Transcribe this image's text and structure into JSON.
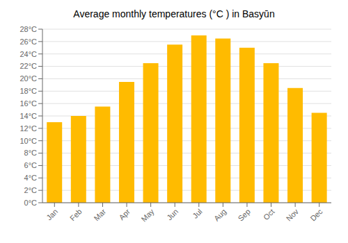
{
  "chart_data": {
    "type": "bar",
    "title": "Average monthly temperatures (°C ) in Basyūn",
    "categories": [
      "Jan",
      "Feb",
      "Mar",
      "Apr",
      "May",
      "Jun",
      "Jul",
      "Aug",
      "Sep",
      "Oct",
      "Nov",
      "Dec"
    ],
    "values": [
      13.0,
      14.0,
      15.5,
      19.5,
      22.5,
      25.5,
      27.0,
      26.5,
      25.0,
      22.5,
      18.5,
      14.5
    ],
    "color": "#FFBB00",
    "ylim": [
      0,
      28
    ],
    "yticks": [
      {
        "value": 0,
        "label": "0°C"
      },
      {
        "value": 2,
        "label": "2°C"
      },
      {
        "value": 4,
        "label": "4°C"
      },
      {
        "value": 6,
        "label": "6°C"
      },
      {
        "value": 8,
        "label": "8°C"
      },
      {
        "value": 10,
        "label": "10°C"
      },
      {
        "value": 12,
        "label": "12°C"
      },
      {
        "value": 14,
        "label": "14°C"
      },
      {
        "value": 16,
        "label": "16°C"
      },
      {
        "value": 18,
        "label": "18°C"
      },
      {
        "value": 20,
        "label": "20°C"
      },
      {
        "value": 22,
        "label": "22°C"
      },
      {
        "value": 24,
        "label": "24°C"
      },
      {
        "value": 26,
        "label": "26°C"
      },
      {
        "value": 28,
        "label": "28°C"
      }
    ],
    "grid": true
  }
}
